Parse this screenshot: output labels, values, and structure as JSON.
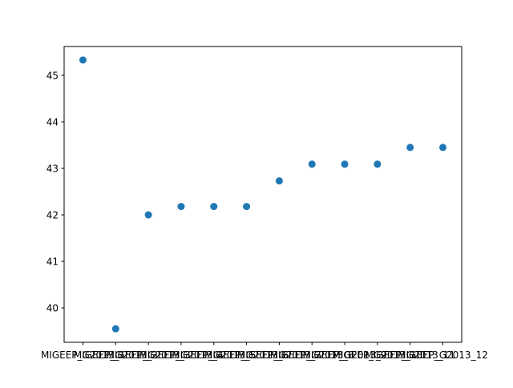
{
  "chart_data": {
    "type": "scatter",
    "title": "",
    "xlabel": "",
    "ylabel": "",
    "categories": [
      "MIGEEP_G2013_1",
      "MIGEEP_G2013_2",
      "MIGEEP_G2013_3",
      "MIGEEP_G2013_4",
      "MIGEEP_G2013_5",
      "MIGEEP_G2013_6",
      "MIGEEP_G2013_7",
      "MIGEEP_G2013_8",
      "MIGEEP_G2013_9",
      "MIGEEP_G2013_10",
      "MIGEEP_G2013_11",
      "MIGEEP_G2013_12"
    ],
    "values": [
      45.33,
      39.55,
      42.0,
      42.18,
      42.18,
      42.18,
      42.73,
      43.09,
      43.09,
      43.09,
      43.45,
      43.45
    ],
    "ylim": [
      39.26,
      45.62
    ],
    "yticks": [
      "40",
      "41",
      "42",
      "43",
      "44",
      "45"
    ],
    "grid": false,
    "point_color": "#1f77b4"
  }
}
